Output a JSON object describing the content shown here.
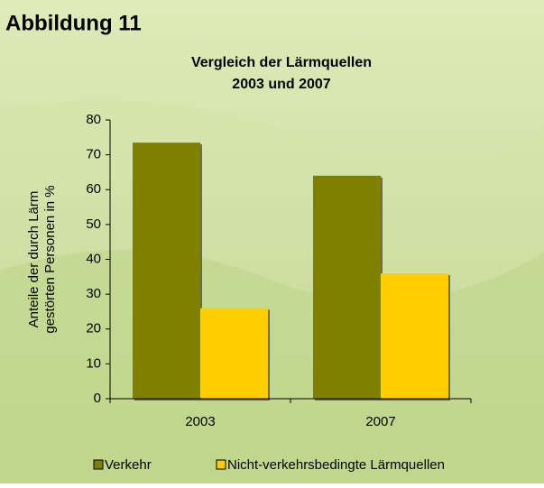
{
  "header": {
    "label": "Abbildung 11"
  },
  "chart_data": {
    "type": "bar",
    "title": [
      "Vergleich der Lärmquellen",
      "2003 und 2007"
    ],
    "y_label": [
      "Anteile der durch Lärm",
      "gestörten Personen in %"
    ],
    "categories": [
      "2003",
      "2007"
    ],
    "series": [
      {
        "name": "Verkehr",
        "color": "#808000",
        "values": [
          73.5,
          64
        ]
      },
      {
        "name": "Nicht-verkehrsbedingte Lärmquellen",
        "color": "#ffcc00",
        "values": [
          26,
          36
        ]
      }
    ],
    "ylim": [
      0,
      80
    ],
    "yticks": [
      0,
      10,
      20,
      30,
      40,
      50,
      60,
      70,
      80
    ],
    "grid": false,
    "legend": "bottom"
  }
}
